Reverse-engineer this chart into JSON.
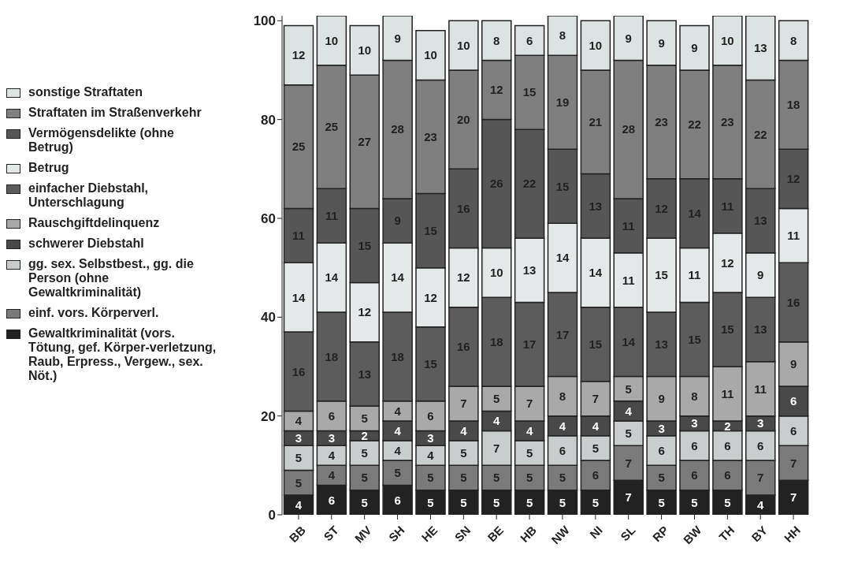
{
  "chart_data": {
    "type": "bar",
    "stacked": true,
    "data_labels": true,
    "legend": "top left",
    "grid": false,
    "categories": [
      "BB",
      "ST",
      "MV",
      "SH",
      "HE",
      "SN",
      "BE",
      "HB",
      "NW",
      "NI",
      "SL",
      "RP",
      "BW",
      "TH",
      "BY",
      "HH"
    ],
    "ylim": [
      0,
      101
    ],
    "yticks": [
      0,
      20,
      40,
      60,
      80,
      100
    ],
    "series": [
      {
        "name": "Gewaltkriminalität (vors. Tötung, gef. Körper-verletzung, Raub, Erpress., Vergew., sex. Nöt.)",
        "color": "#222222",
        "values": [
          4,
          6,
          5,
          6,
          5,
          5,
          5,
          5,
          5,
          5,
          7,
          5,
          5,
          5,
          4,
          7
        ]
      },
      {
        "name": "einf. vors. Körperverl.",
        "color": "#7a7a7a",
        "values": [
          5,
          4,
          5,
          5,
          5,
          5,
          5,
          5,
          5,
          6,
          7,
          5,
          6,
          6,
          7,
          7
        ]
      },
      {
        "name": "gg. sex. Selbstbest., gg. die Person (ohne Gewaltkriminalität)",
        "color": "#c9cdcd",
        "values": [
          5,
          4,
          5,
          4,
          4,
          5,
          7,
          5,
          6,
          5,
          5,
          6,
          6,
          6,
          6,
          6
        ]
      },
      {
        "name": "schwerer Diebstahl",
        "color": "#494949",
        "values": [
          3,
          3,
          2,
          4,
          3,
          4,
          4,
          4,
          4,
          4,
          4,
          3,
          3,
          2,
          3,
          6
        ]
      },
      {
        "name": "Rauschgiftdelinquenz",
        "color": "#a9a9a9",
        "values": [
          4,
          6,
          5,
          4,
          6,
          7,
          5,
          7,
          8,
          7,
          5,
          9,
          8,
          11,
          11,
          9
        ]
      },
      {
        "name": "einfacher Diebstahl, Unterschlagung",
        "color": "#5c5c5c",
        "values": [
          16,
          18,
          13,
          18,
          15,
          16,
          18,
          17,
          17,
          15,
          14,
          13,
          15,
          15,
          13,
          16
        ]
      },
      {
        "name": "Betrug",
        "color": "#e4e8e8",
        "values": [
          14,
          14,
          12,
          14,
          12,
          12,
          10,
          13,
          14,
          14,
          11,
          15,
          11,
          12,
          9,
          11
        ]
      },
      {
        "name": "Vermögensdelikte (ohne Betrug)",
        "color": "#565656",
        "values": [
          11,
          11,
          15,
          9,
          15,
          16,
          26,
          22,
          15,
          13,
          11,
          12,
          14,
          11,
          13,
          12
        ]
      },
      {
        "name": "Straftaten im Straßenverkehr",
        "color": "#7f7f7f",
        "values": [
          25,
          25,
          27,
          28,
          23,
          20,
          12,
          15,
          19,
          21,
          28,
          23,
          22,
          23,
          22,
          18
        ]
      },
      {
        "name": "sonstige Straftaten",
        "color": "#dde2e2",
        "values": [
          12,
          10,
          10,
          9,
          10,
          10,
          8,
          6,
          8,
          10,
          9,
          9,
          9,
          10,
          13,
          8
        ]
      }
    ]
  }
}
